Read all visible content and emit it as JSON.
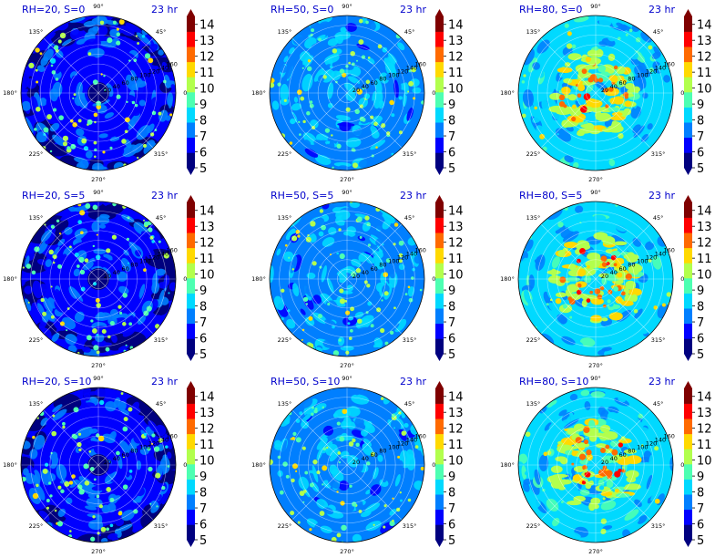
{
  "chart_data": {
    "type": "polar-contourf-grid",
    "time_label": "23 hr",
    "angle_ticks": [
      "0°",
      "45°",
      "90°",
      "135°",
      "180°",
      "225°",
      "270°",
      "315°"
    ],
    "radius_ticks": [
      20,
      40,
      60,
      80,
      100,
      120,
      140,
      160
    ],
    "colorbar_ticks": [
      5,
      6,
      7,
      8,
      9,
      10,
      11,
      12,
      13,
      14
    ],
    "colorbar_range": [
      5,
      14.5
    ],
    "colormap": [
      "#00007f",
      "#0000ff",
      "#007fff",
      "#00d9ff",
      "#4dffb2",
      "#b2ff4d",
      "#ffd900",
      "#ff6a00",
      "#ff0000",
      "#7f0000"
    ],
    "panels": [
      {
        "title": "RH=20, S=0",
        "rh": 20,
        "s": 0,
        "time": "23 hr"
      },
      {
        "title": "RH=50, S=0",
        "rh": 50,
        "s": 0,
        "time": "23 hr"
      },
      {
        "title": "RH=80, S=0",
        "rh": 80,
        "s": 0,
        "time": "23 hr"
      },
      {
        "title": "RH=20, S=5",
        "rh": 20,
        "s": 5,
        "time": "23 hr"
      },
      {
        "title": "RH=50, S=5",
        "rh": 50,
        "s": 5,
        "time": "23 hr"
      },
      {
        "title": "RH=80, S=5",
        "rh": 80,
        "s": 5,
        "time": "23 hr"
      },
      {
        "title": "RH=20, S=10",
        "rh": 20,
        "s": 10,
        "time": "23 hr"
      },
      {
        "title": "RH=50, S=10",
        "rh": 50,
        "s": 10,
        "time": "23 hr"
      },
      {
        "title": "RH=80, S=10",
        "rh": 80,
        "s": 10,
        "time": "23 hr"
      }
    ]
  }
}
